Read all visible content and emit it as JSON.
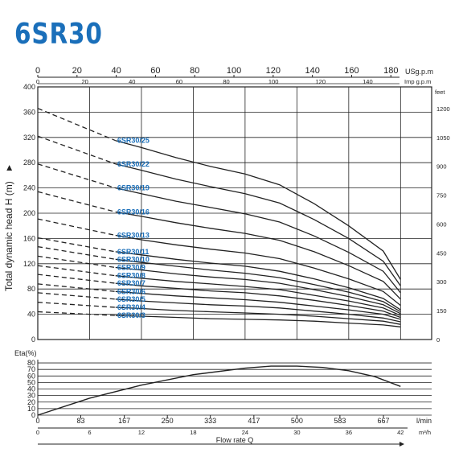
{
  "header": {
    "title": "6SR30"
  },
  "chart_data": [
    {
      "type": "line",
      "title": "",
      "ylabel": "Total dynamic head H (m)",
      "y_right_unit": "feet",
      "top_axis_usgpm": {
        "unit": "USg.p.m",
        "ticks": [
          "0",
          "20",
          "40",
          "60",
          "80",
          "100",
          "120",
          "140",
          "160",
          "180"
        ]
      },
      "top_axis_imp": {
        "unit": "Imp g.p.m",
        "ticks": [
          "0",
          "20",
          "40",
          "60",
          "80",
          "100",
          "120",
          "140"
        ]
      },
      "y_ticks": [
        "0",
        "40",
        "80",
        "120",
        "160",
        "200",
        "240",
        "280",
        "320",
        "360",
        "400"
      ],
      "y_right_ticks": [
        "0",
        "150",
        "300",
        "450",
        "600",
        "750",
        "900",
        "1050",
        "1200"
      ],
      "ylim": [
        0,
        400
      ],
      "xlim": [
        0,
        42
      ],
      "grid": true,
      "series": [
        {
          "name": "6SR30/25",
          "head": [
            366,
            315,
            304,
            288,
            274,
            262,
            245,
            215,
            180,
            140,
            95
          ]
        },
        {
          "name": "6SR30/22",
          "head": [
            322,
            278,
            268,
            254,
            242,
            231,
            216,
            190,
            160,
            124,
            85
          ]
        },
        {
          "name": "6SR30/19",
          "head": [
            278,
            240,
            231,
            219,
            209,
            199,
            186,
            164,
            138,
            108,
            74
          ]
        },
        {
          "name": "6SR30/16",
          "head": [
            234,
            202,
            195,
            185,
            176,
            168,
            157,
            139,
            117,
            92,
            64
          ]
        },
        {
          "name": "6SR30/13",
          "head": [
            191,
            165,
            158,
            150,
            143,
            137,
            128,
            113,
            96,
            76,
            54
          ]
        },
        {
          "name": "6SR30/11",
          "head": [
            161,
            139,
            134,
            127,
            121,
            116,
            108,
            96,
            82,
            65,
            47
          ]
        },
        {
          "name": "6SR30/10",
          "head": [
            147,
            127,
            122,
            116,
            110,
            105,
            98,
            87,
            75,
            60,
            44
          ]
        },
        {
          "name": "6SR30/9",
          "head": [
            132,
            114,
            110,
            104,
            99,
            95,
            89,
            79,
            68,
            55,
            41
          ]
        },
        {
          "name": "6SR30/8",
          "head": [
            117,
            101,
            97,
            92,
            88,
            84,
            79,
            70,
            61,
            50,
            38
          ]
        },
        {
          "name": "6SR30/7",
          "head": [
            103,
            89,
            85,
            81,
            77,
            74,
            69,
            62,
            54,
            45,
            35
          ]
        },
        {
          "name": "6SR30/6",
          "head": [
            88,
            76,
            73,
            69,
            66,
            63,
            59,
            53,
            47,
            40,
            32
          ]
        },
        {
          "name": "6SR30/5",
          "head": [
            74,
            64,
            61,
            58,
            55,
            53,
            50,
            45,
            40,
            34,
            28
          ]
        },
        {
          "name": "6SR30/4",
          "head": [
            59,
            51,
            49,
            46,
            44,
            42,
            40,
            37,
            33,
            29,
            24
          ]
        },
        {
          "name": "6SR30/3",
          "head": [
            44,
            38,
            37,
            35,
            33,
            32,
            31,
            29,
            26,
            23,
            20
          ]
        }
      ],
      "dashed_until_q": 9,
      "q_points": [
        0,
        9,
        12,
        16,
        20,
        24,
        28,
        32,
        36,
        40,
        42
      ]
    },
    {
      "type": "line",
      "ylabel": "Eta(%)",
      "y_ticks": [
        "0",
        "10",
        "20",
        "30",
        "40",
        "50",
        "60",
        "70",
        "80"
      ],
      "ylim": [
        0,
        85
      ],
      "x_ticks_lmin": [
        "0",
        "83",
        "167",
        "250",
        "333",
        "417",
        "500",
        "583",
        "667"
      ],
      "x_unit_lmin": "l/min",
      "x_ticks_m3h": [
        "0",
        "6",
        "12",
        "18",
        "24",
        "30",
        "36",
        "42"
      ],
      "x_unit_m3h": "m³/h",
      "xlabel": "Flow rate Q",
      "series": [
        {
          "q": [
            0,
            6,
            12,
            18,
            24,
            27,
            30,
            33,
            36,
            39,
            42
          ],
          "eta": [
            0,
            26,
            46,
            62,
            72,
            75,
            75,
            73,
            68,
            59,
            44
          ]
        }
      ]
    }
  ]
}
